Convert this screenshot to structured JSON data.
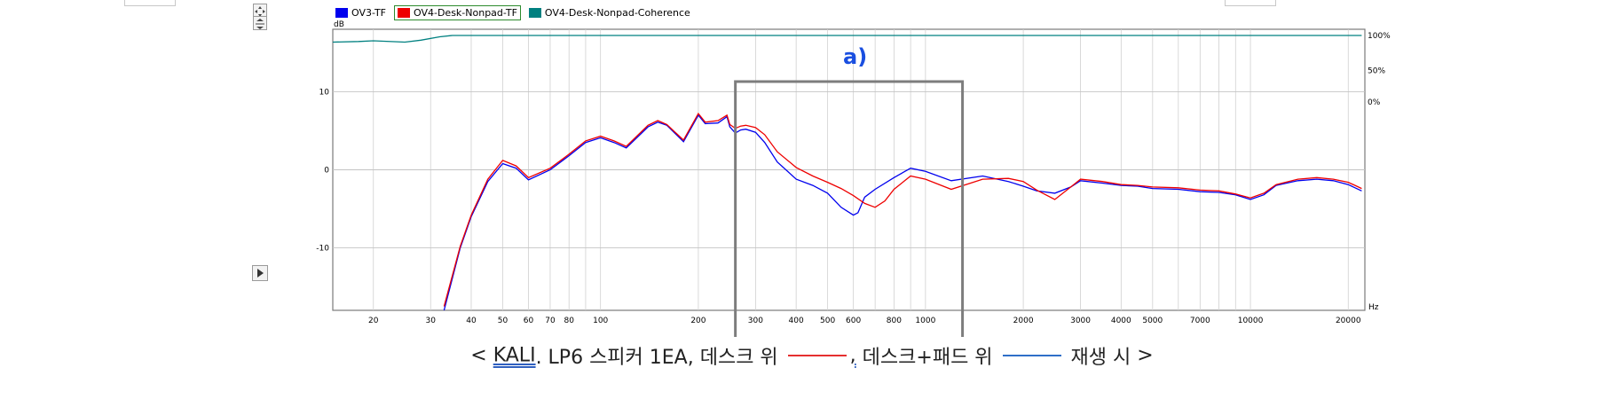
{
  "legend": [
    {
      "name": "OV3-TF",
      "color": "#0000ee"
    },
    {
      "name": "OV4-Desk-Nonpad-TF",
      "color": "#ee0000",
      "selected": true
    },
    {
      "name": "OV4-Desk-Nonpad-Coherence",
      "color": "#008080"
    }
  ],
  "chart_data": {
    "type": "line",
    "title": "",
    "xlabel": "Hz",
    "ylabel": "dB",
    "x_scale": "log",
    "xlim": [
      15,
      22500
    ],
    "ylim": [
      -18,
      18
    ],
    "x_ticks": [
      20,
      30,
      40,
      50,
      60,
      70,
      80,
      100,
      200,
      300,
      400,
      500,
      600,
      800,
      1000,
      2000,
      3000,
      4000,
      5000,
      7000,
      10000,
      20000
    ],
    "y_ticks": [
      10,
      0,
      -10
    ],
    "secondary_axis": {
      "label_ticks": [
        "100%",
        "50%",
        "0%"
      ]
    },
    "annotation": {
      "text": "a)",
      "box_x_range": [
        260,
        1300
      ]
    },
    "grid": true,
    "series": [
      {
        "name": "OV3-TF",
        "x": [
          33,
          37,
          40,
          45,
          50,
          55,
          60,
          70,
          80,
          90,
          100,
          110,
          120,
          140,
          150,
          160,
          180,
          200,
          210,
          230,
          245,
          250,
          260,
          270,
          280,
          300,
          320,
          350,
          400,
          450,
          500,
          550,
          600,
          620,
          650,
          700,
          800,
          900,
          1000,
          1200,
          1500,
          1800,
          2000,
          2200,
          2500,
          2800,
          3000,
          3500,
          4000,
          4500,
          5000,
          6000,
          7000,
          8000,
          9000,
          10000,
          11000,
          12000,
          14000,
          16000,
          18000,
          20000,
          22000
        ],
        "y": [
          -18,
          -10,
          -6,
          -1.5,
          0.8,
          0.2,
          -1.3,
          0,
          1.8,
          3.5,
          4.1,
          3.5,
          2.8,
          5.5,
          6.1,
          5.7,
          3.6,
          7,
          5.9,
          6,
          6.8,
          5.5,
          4.7,
          5.1,
          5.2,
          4.8,
          3.5,
          1,
          -1.2,
          -2,
          -3,
          -4.8,
          -5.8,
          -5.5,
          -3.5,
          -2.5,
          -1,
          0.2,
          -0.2,
          -1.4,
          -0.8,
          -1.5,
          -2.1,
          -2.7,
          -3,
          -2.2,
          -1.4,
          -1.7,
          -2,
          -2.1,
          -2.4,
          -2.5,
          -2.8,
          -2.9,
          -3.2,
          -3.8,
          -3.2,
          -2,
          -1.4,
          -1.2,
          -1.4,
          -1.9,
          -2.7
        ]
      },
      {
        "name": "OV4-Desk-Nonpad-TF",
        "x": [
          33,
          37,
          40,
          45,
          50,
          55,
          60,
          70,
          80,
          90,
          100,
          110,
          120,
          140,
          150,
          160,
          180,
          200,
          210,
          230,
          245,
          250,
          260,
          270,
          280,
          300,
          320,
          350,
          400,
          450,
          500,
          550,
          600,
          650,
          700,
          750,
          800,
          900,
          1000,
          1200,
          1500,
          1800,
          2000,
          2200,
          2500,
          2800,
          3000,
          3500,
          4000,
          4500,
          5000,
          6000,
          7000,
          8000,
          9000,
          10000,
          11000,
          12000,
          14000,
          16000,
          18000,
          20000,
          22000
        ],
        "y": [
          -17.5,
          -9.8,
          -5.8,
          -1.2,
          1.2,
          0.5,
          -1,
          0.2,
          2,
          3.7,
          4.3,
          3.7,
          3,
          5.7,
          6.3,
          5.8,
          3.8,
          7.2,
          6.1,
          6.3,
          7,
          5.8,
          5.3,
          5.6,
          5.7,
          5.4,
          4.5,
          2.3,
          0.3,
          -0.8,
          -1.6,
          -2.4,
          -3.3,
          -4.3,
          -4.8,
          -4,
          -2.5,
          -0.8,
          -1.2,
          -2.5,
          -1.2,
          -1.1,
          -1.5,
          -2.6,
          -3.8,
          -2.2,
          -1.2,
          -1.5,
          -1.9,
          -2,
          -2.2,
          -2.3,
          -2.6,
          -2.7,
          -3.1,
          -3.6,
          -3,
          -1.9,
          -1.2,
          -1,
          -1.2,
          -1.6,
          -2.4
        ]
      },
      {
        "name": "OV4-Desk-Nonpad-Coherence",
        "x": [
          15,
          18,
          20,
          25,
          28,
          32,
          35,
          38,
          40,
          60,
          100,
          1000,
          10000,
          22000
        ],
        "y": [
          90,
          91,
          92,
          90,
          93,
          98,
          100,
          100,
          100,
          100,
          100,
          100,
          100,
          100
        ]
      }
    ]
  },
  "caption": {
    "open": "<",
    "brand": "KALI",
    "model": ". LP6 스피커 1EA, 데스크 위",
    "comma": ",",
    "desk_pad": "데스크+패드 위",
    "playing": "재생 시",
    "close": ">",
    "red_line_color": "#e53030",
    "blue_line_color": "#2f6fc8"
  }
}
